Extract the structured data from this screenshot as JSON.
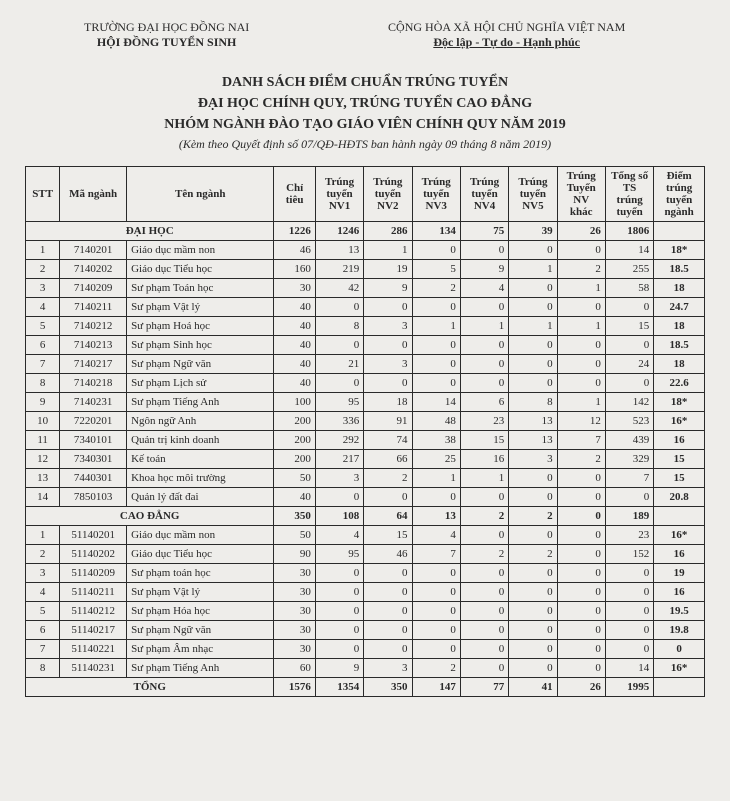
{
  "header": {
    "university": "TRƯỜNG ĐẠI HỌC ĐỒNG NAI",
    "council": "HỘI ĐỒNG TUYỂN SINH",
    "country": "CỘNG HÒA XÃ HỘI CHỦ NGHĨA VIỆT NAM",
    "motto": "Độc lập - Tự do - Hạnh phúc"
  },
  "titles": {
    "l1": "DANH SÁCH ĐIỂM CHUẨN TRÚNG TUYỂN",
    "l2": "ĐẠI HỌC CHÍNH QUY, TRÚNG TUYỂN CAO ĐẲNG",
    "l3": "NHÓM NGÀNH ĐÀO TẠO GIÁO VIÊN CHÍNH QUY NĂM 2019",
    "sub": "(Kèm theo Quyết định số  07/QĐ-HĐTS ban hành ngày  09 tháng 8 năm 2019)"
  },
  "tableHeaders": {
    "stt": "STT",
    "code": "Mã ngành",
    "name": "Tên ngành",
    "chi": "Chỉ tiêu",
    "nv1": "Trúng tuyển NV1",
    "nv2": "Trúng tuyển NV2",
    "nv3": "Trúng tuyển NV3",
    "nv4": "Trúng tuyển NV4",
    "nv5": "Trúng tuyển NV5",
    "nvk": "Trúng Tuyển NV khác",
    "tong": "Tổng số TS trúng tuyển",
    "diem": "Điểm trúng tuyển ngành"
  },
  "sections": {
    "dh": {
      "label": "ĐẠI HỌC",
      "sum": [
        "1226",
        "1246",
        "286",
        "134",
        "75",
        "39",
        "26",
        "1806",
        ""
      ]
    },
    "cd": {
      "label": "CAO ĐẲNG",
      "sum": [
        "350",
        "108",
        "64",
        "13",
        "2",
        "2",
        "0",
        "189",
        ""
      ]
    },
    "tong": {
      "label": "TỔNG",
      "sum": [
        "1576",
        "1354",
        "350",
        "147",
        "77",
        "41",
        "26",
        "1995",
        ""
      ]
    }
  },
  "dh": [
    {
      "stt": "1",
      "code": "7140201",
      "name": "Giáo dục mầm non",
      "v": [
        "46",
        "13",
        "1",
        "0",
        "0",
        "0",
        "0",
        "14",
        "18*"
      ]
    },
    {
      "stt": "2",
      "code": "7140202",
      "name": "Giáo dục Tiểu học",
      "v": [
        "160",
        "219",
        "19",
        "5",
        "9",
        "1",
        "2",
        "255",
        "18.5"
      ]
    },
    {
      "stt": "3",
      "code": "7140209",
      "name": "Sư phạm Toán học",
      "v": [
        "30",
        "42",
        "9",
        "2",
        "4",
        "0",
        "1",
        "58",
        "18"
      ]
    },
    {
      "stt": "4",
      "code": "7140211",
      "name": "Sư phạm Vật lý",
      "v": [
        "40",
        "0",
        "0",
        "0",
        "0",
        "0",
        "0",
        "0",
        "24.7"
      ]
    },
    {
      "stt": "5",
      "code": "7140212",
      "name": "Sư phạm Hoá học",
      "v": [
        "40",
        "8",
        "3",
        "1",
        "1",
        "1",
        "1",
        "15",
        "18"
      ]
    },
    {
      "stt": "6",
      "code": "7140213",
      "name": "Sư phạm Sinh học",
      "v": [
        "40",
        "0",
        "0",
        "0",
        "0",
        "0",
        "0",
        "0",
        "18.5"
      ]
    },
    {
      "stt": "7",
      "code": "7140217",
      "name": "Sư phạm Ngữ văn",
      "v": [
        "40",
        "21",
        "3",
        "0",
        "0",
        "0",
        "0",
        "24",
        "18"
      ]
    },
    {
      "stt": "8",
      "code": "7140218",
      "name": "Sư phạm Lịch sử",
      "v": [
        "40",
        "0",
        "0",
        "0",
        "0",
        "0",
        "0",
        "0",
        "22.6"
      ]
    },
    {
      "stt": "9",
      "code": "7140231",
      "name": "Sư phạm Tiếng Anh",
      "v": [
        "100",
        "95",
        "18",
        "14",
        "6",
        "8",
        "1",
        "142",
        "18*"
      ]
    },
    {
      "stt": "10",
      "code": "7220201",
      "name": "Ngôn ngữ Anh",
      "v": [
        "200",
        "336",
        "91",
        "48",
        "23",
        "13",
        "12",
        "523",
        "16*"
      ]
    },
    {
      "stt": "11",
      "code": "7340101",
      "name": "Quản trị kinh doanh",
      "v": [
        "200",
        "292",
        "74",
        "38",
        "15",
        "13",
        "7",
        "439",
        "16"
      ]
    },
    {
      "stt": "12",
      "code": "7340301",
      "name": "Kế toán",
      "v": [
        "200",
        "217",
        "66",
        "25",
        "16",
        "3",
        "2",
        "329",
        "15"
      ]
    },
    {
      "stt": "13",
      "code": "7440301",
      "name": "Khoa học môi trường",
      "v": [
        "50",
        "3",
        "2",
        "1",
        "1",
        "0",
        "0",
        "7",
        "15"
      ]
    },
    {
      "stt": "14",
      "code": "7850103",
      "name": "Quản lý đất đai",
      "v": [
        "40",
        "0",
        "0",
        "0",
        "0",
        "0",
        "0",
        "0",
        "20.8"
      ]
    }
  ],
  "cd": [
    {
      "stt": "1",
      "code": "51140201",
      "name": "Giáo dục mầm non",
      "v": [
        "50",
        "4",
        "15",
        "4",
        "0",
        "0",
        "0",
        "23",
        "16*"
      ]
    },
    {
      "stt": "2",
      "code": "51140202",
      "name": "Giáo dục Tiểu học",
      "v": [
        "90",
        "95",
        "46",
        "7",
        "2",
        "2",
        "0",
        "152",
        "16"
      ]
    },
    {
      "stt": "3",
      "code": "51140209",
      "name": "Sư phạm toán học",
      "v": [
        "30",
        "0",
        "0",
        "0",
        "0",
        "0",
        "0",
        "0",
        "19"
      ]
    },
    {
      "stt": "4",
      "code": "51140211",
      "name": "Sư phạm Vật lý",
      "v": [
        "30",
        "0",
        "0",
        "0",
        "0",
        "0",
        "0",
        "0",
        "16"
      ]
    },
    {
      "stt": "5",
      "code": "51140212",
      "name": "Sư phạm Hóa học",
      "v": [
        "30",
        "0",
        "0",
        "0",
        "0",
        "0",
        "0",
        "0",
        "19.5"
      ]
    },
    {
      "stt": "6",
      "code": "51140217",
      "name": "Sư phạm Ngữ văn",
      "v": [
        "30",
        "0",
        "0",
        "0",
        "0",
        "0",
        "0",
        "0",
        "19.8"
      ]
    },
    {
      "stt": "7",
      "code": "51140221",
      "name": "Sư phạm Âm nhạc",
      "v": [
        "30",
        "0",
        "0",
        "0",
        "0",
        "0",
        "0",
        "0",
        "0"
      ]
    },
    {
      "stt": "8",
      "code": "51140231",
      "name": "Sư phạm Tiếng Anh",
      "v": [
        "60",
        "9",
        "3",
        "2",
        "0",
        "0",
        "0",
        "14",
        "16*"
      ]
    }
  ]
}
